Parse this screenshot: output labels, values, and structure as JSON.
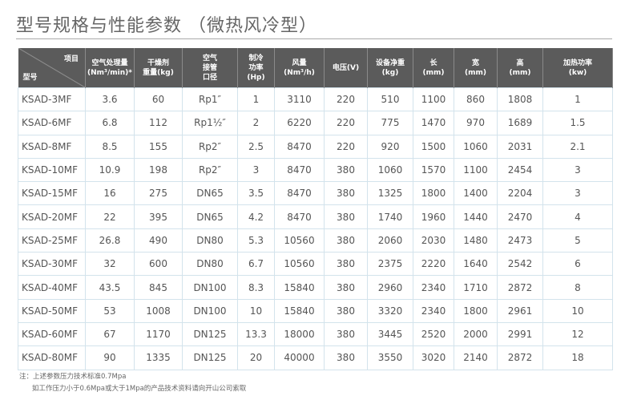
{
  "title": "型号规格与性能参数 （微热风冷型）",
  "header": {
    "item": "项目",
    "model": "型号",
    "cols": [
      [
        "空气处理量",
        "(Nm³/min)*"
      ],
      [
        "干燥剂",
        "重量(kg)"
      ],
      [
        "空气",
        "接管",
        "口径"
      ],
      [
        "制冷",
        "功率",
        "(Hp)"
      ],
      [
        "风量",
        "(Nm³/h)"
      ],
      [
        "电压(V)"
      ],
      [
        "设备净重",
        "(kg)"
      ],
      [
        "长",
        "(mm)"
      ],
      [
        "宽",
        "(mm)"
      ],
      [
        "高",
        "(mm)"
      ],
      [
        "加热功率",
        "(kw)"
      ]
    ]
  },
  "rows": [
    [
      "KSAD-3MF",
      "3.6",
      "60",
      "Rp1″",
      "1",
      "3110",
      "220",
      "510",
      "1100",
      "860",
      "1808",
      "1"
    ],
    [
      "KSAD-6MF",
      "6.8",
      "112",
      "Rp1½″",
      "2",
      "6220",
      "220",
      "775",
      "1470",
      "970",
      "1689",
      "1.5"
    ],
    [
      "KSAD-8MF",
      "8.5",
      "155",
      "Rp2″",
      "2.5",
      "8470",
      "220",
      "920",
      "1500",
      "1060",
      "2031",
      "2.1"
    ],
    [
      "KSAD-10MF",
      "10.9",
      "198",
      "Rp2″",
      "3",
      "8470",
      "380",
      "1060",
      "1570",
      "1100",
      "2454",
      "3"
    ],
    [
      "KSAD-15MF",
      "16",
      "275",
      "DN65",
      "3.5",
      "8470",
      "380",
      "1325",
      "1800",
      "1400",
      "2204",
      "3"
    ],
    [
      "KSAD-20MF",
      "22",
      "395",
      "DN65",
      "4.2",
      "8470",
      "380",
      "1740",
      "1960",
      "1440",
      "2470",
      "4"
    ],
    [
      "KSAD-25MF",
      "26.8",
      "490",
      "DN80",
      "5.3",
      "10560",
      "380",
      "2060",
      "2030",
      "1480",
      "2473",
      "5"
    ],
    [
      "KSAD-30MF",
      "32",
      "600",
      "DN80",
      "6.7",
      "10560",
      "380",
      "2375",
      "2220",
      "1640",
      "2542",
      "6"
    ],
    [
      "KSAD-40MF",
      "43.5",
      "845",
      "DN100",
      "8.3",
      "15840",
      "380",
      "2960",
      "2340",
      "1710",
      "2872",
      "8"
    ],
    [
      "KSAD-50MF",
      "53",
      "1008",
      "DN100",
      "10",
      "15840",
      "380",
      "3320",
      "2340",
      "1800",
      "2961",
      "10"
    ],
    [
      "KSAD-60MF",
      "67",
      "1170",
      "DN125",
      "13.3",
      "18000",
      "380",
      "3445",
      "2520",
      "2000",
      "2991",
      "12"
    ],
    [
      "KSAD-80MF",
      "90",
      "1335",
      "DN125",
      "20",
      "40000",
      "380",
      "3550",
      "3020",
      "2140",
      "2872",
      "18"
    ]
  ],
  "notes": [
    "注：上述参数压力技术标准0.7Mpa",
    "如工作压力小于0.6Mpa或大于1Mpa的产品技术资料请向开山公司索取"
  ]
}
